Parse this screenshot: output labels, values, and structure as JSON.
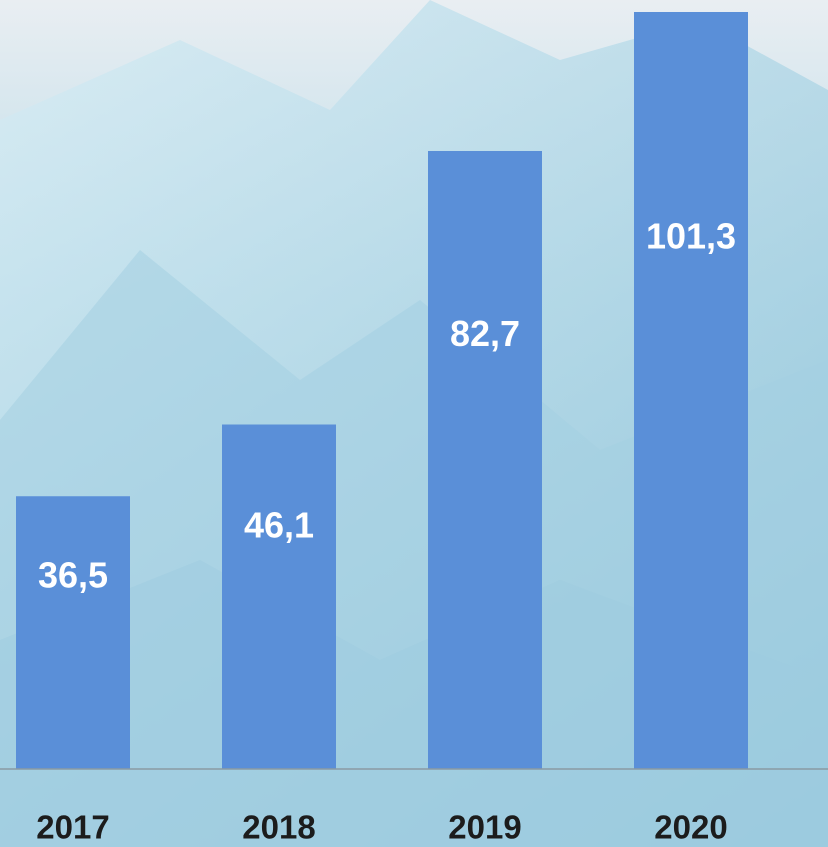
{
  "chart_data": {
    "type": "bar",
    "categories": [
      "2017",
      "2018",
      "2019",
      "2020"
    ],
    "values": [
      36.5,
      46.1,
      82.7,
      101.3
    ],
    "value_labels": [
      "36,5",
      "46,1",
      "82,7",
      "101,3"
    ],
    "color": "#5a8fd8"
  }
}
